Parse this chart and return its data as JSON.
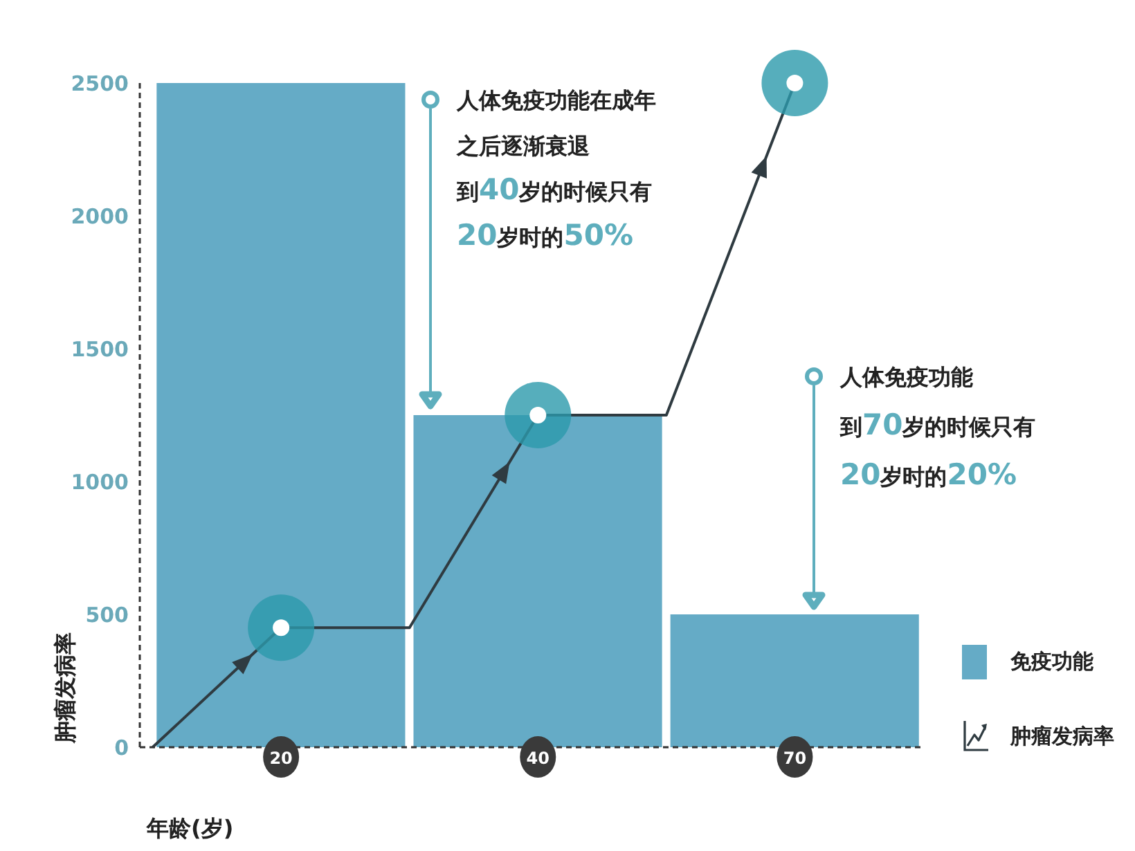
{
  "chart_data": {
    "type": "bar",
    "categories": [
      null,
      "20",
      null,
      "40",
      null,
      "70"
    ],
    "series": [
      {
        "name": "免疫功能",
        "color": "#65abc6",
        "values": [
          null,
          2500,
          null,
          1250,
          null,
          500
        ]
      },
      {
        "name": "肿瘤发病率",
        "type": "line",
        "color": "#2f3b41",
        "values": [
          0,
          450,
          450,
          1250,
          1250,
          2500
        ]
      }
    ],
    "marker": "circle",
    "xlabel": "年龄(岁)",
    "ylabel": "肿瘤发病率",
    "ylim": [
      0,
      2500
    ],
    "yticks": [
      0,
      500,
      1000,
      1500,
      2000,
      2500
    ],
    "legend": "bottom right",
    "annotations": [
      "人体免疫功能在成年之后逐渐衰退到40岁的时候只有20岁时的50%",
      "人体免疫功能到70岁的时候只有20岁时的20%"
    ]
  }
}
